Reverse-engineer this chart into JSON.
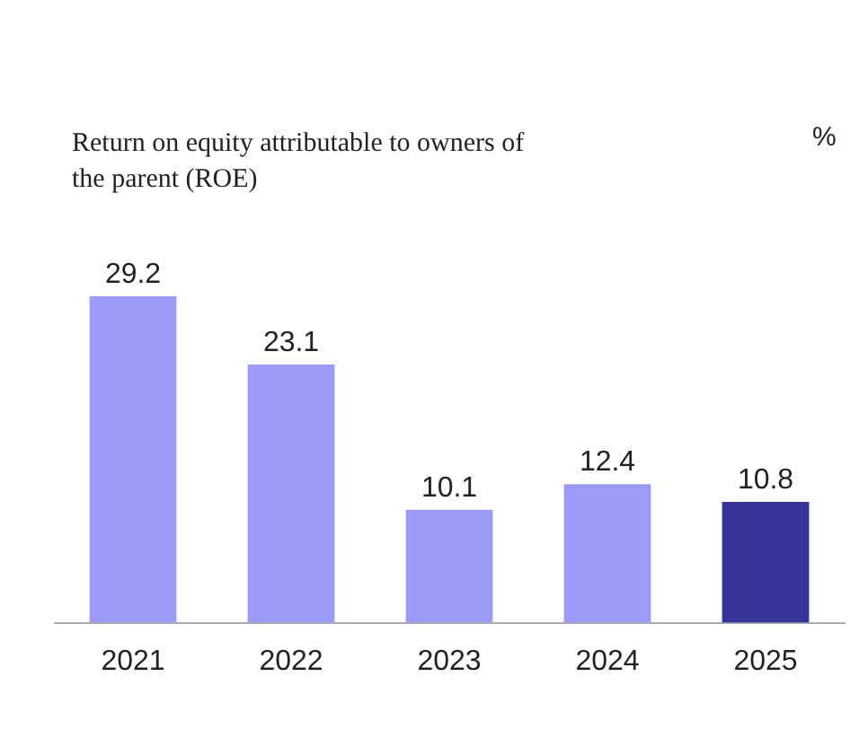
{
  "chart_data": {
    "type": "bar",
    "title": "Return on equity attributable to owners of the parent (ROE)",
    "annotations": [
      "%"
    ],
    "categories": [
      "2021",
      "2022",
      "2023",
      "2024",
      "2025"
    ],
    "values": [
      29.2,
      23.1,
      10.1,
      12.4,
      10.8
    ],
    "colors": [
      "#9b9bf7",
      "#9b9bf7",
      "#9b9bf7",
      "#9b9bf7",
      "#333399"
    ],
    "data_labels": true,
    "grid": false,
    "legend": false
  }
}
